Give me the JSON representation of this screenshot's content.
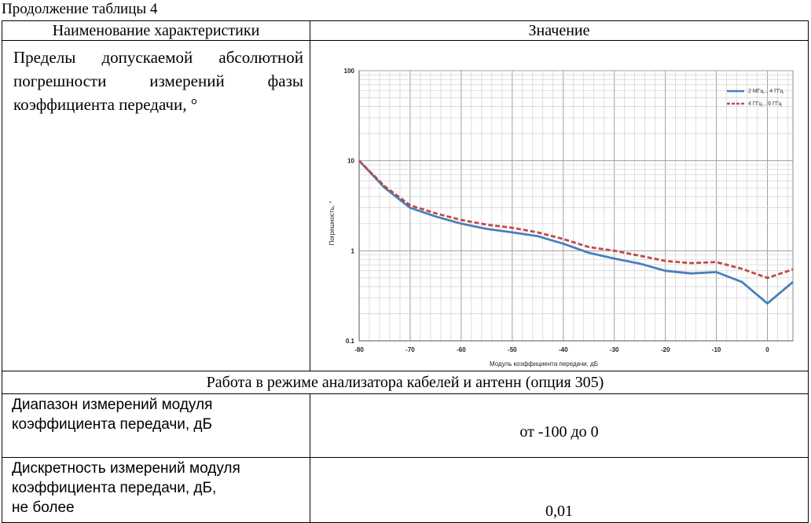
{
  "caption": "Продолжение таблицы 4",
  "header": {
    "col1": "Наименование характеристики",
    "col2": "Значение"
  },
  "phase_row": {
    "label": "Пределы допускаемой абсолют­ной погрешности измерений фазы коэффициента передачи, °"
  },
  "chart_data": {
    "type": "line",
    "xlabel": "Модуль коэффициента передачи, дБ",
    "ylabel": "Погрешность, °",
    "xlim": [
      -80,
      5
    ],
    "ylim": [
      0.1,
      100
    ],
    "yscale": "log",
    "grid": true,
    "legend": "top-right",
    "x_ticks": [
      "-80",
      "-70",
      "-60",
      "-50",
      "-40",
      "-30",
      "-20",
      "-10",
      "0"
    ],
    "y_ticks": [
      "100",
      "10",
      "1",
      "0.1"
    ],
    "x": [
      -80,
      -75,
      -70,
      -65,
      -60,
      -55,
      -50,
      -45,
      -40,
      -35,
      -30,
      -25,
      -20,
      -15,
      -10,
      -5,
      0,
      5
    ],
    "series": [
      {
        "name": "2 МГц... 4 ГГц",
        "color": "#4a7ebb",
        "style": "solid",
        "values": [
          10,
          5,
          3,
          2.4,
          2.0,
          1.75,
          1.6,
          1.45,
          1.2,
          0.95,
          0.82,
          0.72,
          0.6,
          0.56,
          0.58,
          0.45,
          0.26,
          0.45
        ]
      },
      {
        "name": "4 ГГц... 6 ГГц",
        "color": "#be4b48",
        "style": "dashed",
        "values": [
          10,
          5.2,
          3.2,
          2.6,
          2.2,
          1.95,
          1.8,
          1.6,
          1.35,
          1.1,
          1.0,
          0.88,
          0.77,
          0.73,
          0.75,
          0.63,
          0.5,
          0.62
        ]
      }
    ]
  },
  "section_title": "Работа в режиме анализатора кабелей и антенн (опция 305)",
  "rows": [
    {
      "label_l1": "Диапазон измерений модуля",
      "label_l2": "коэффициента передачи, дБ",
      "value": "от -100 до 0"
    },
    {
      "label_l1": "Дискретность измерений модуля",
      "label_l2": "коэффициента передачи, дБ,",
      "label_l3": "не более",
      "value": "0,01"
    }
  ]
}
